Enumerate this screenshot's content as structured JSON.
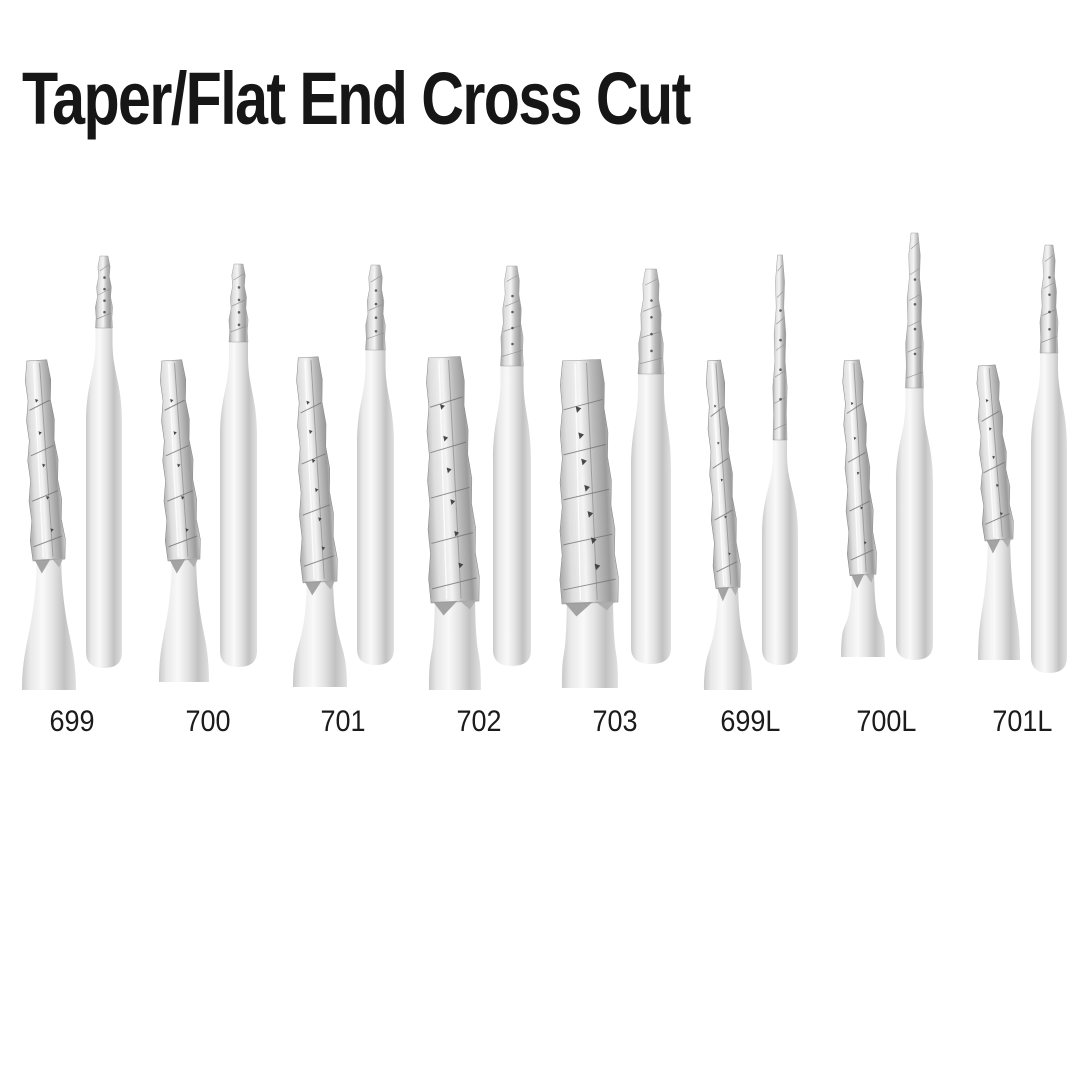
{
  "page": {
    "title": "Taper/Flat End Cross Cut",
    "background_color": "#ffffff",
    "title_color": "#161616",
    "label_color": "#1b1b1b"
  },
  "colors": {
    "metal_light": "#f9f9f9",
    "metal_mid": "#d9d9d9",
    "metal_dark": "#9b9b9b",
    "notch_dark": "#3b3b3b"
  },
  "products": [
    {
      "label": "699",
      "images": {
        "left": "bur-head-closeup-photo",
        "right": "full-length-bur-photo"
      }
    },
    {
      "label": "700",
      "images": {
        "left": "bur-head-closeup-photo",
        "right": "full-length-bur-photo"
      }
    },
    {
      "label": "701",
      "images": {
        "left": "bur-head-closeup-photo",
        "right": "full-length-bur-photo"
      }
    },
    {
      "label": "702",
      "images": {
        "left": "bur-head-closeup-photo",
        "right": "full-length-bur-photo"
      }
    },
    {
      "label": "703",
      "images": {
        "left": "bur-head-closeup-photo",
        "right": "full-length-bur-photo"
      }
    },
    {
      "label": "699L",
      "images": {
        "left": "bur-head-closeup-photo",
        "right": "full-length-bur-photo"
      }
    },
    {
      "label": "700L",
      "images": {
        "left": "bur-head-closeup-photo",
        "right": "full-length-bur-photo"
      }
    },
    {
      "label": "701L",
      "images": {
        "left": "bur-head-closeup-photo",
        "right": "full-length-bur-photo"
      }
    }
  ]
}
